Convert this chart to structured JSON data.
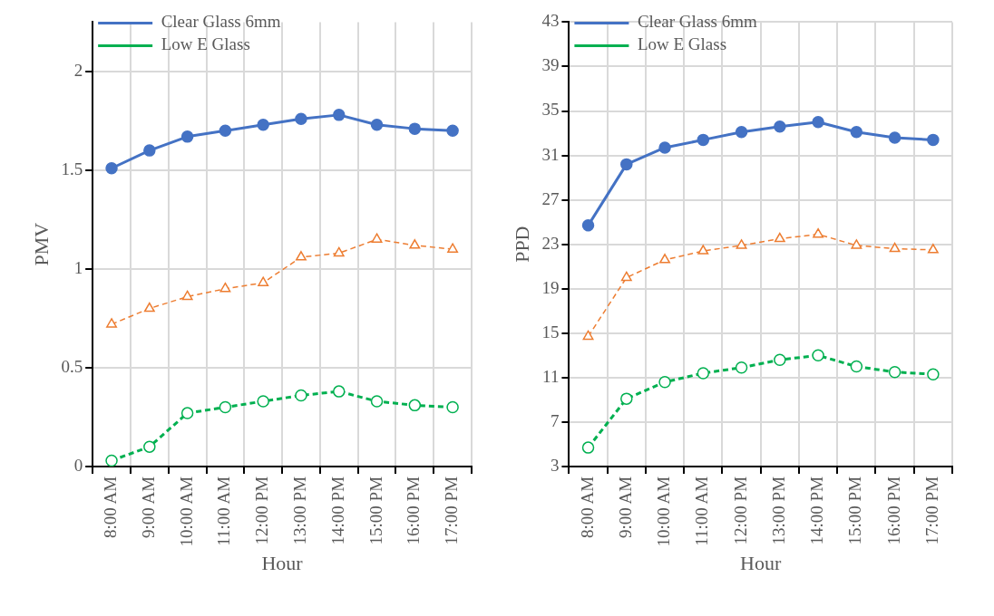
{
  "chart_data": [
    {
      "type": "line",
      "xlabel": "Hour",
      "ylabel": "PMV",
      "categories": [
        "8:00 AM",
        "9:00 AM",
        "10:00 AM",
        "11:00 AM",
        "12:00 PM",
        "13:00 PM",
        "14:00 PM",
        "15:00 PM",
        "16:00 PM",
        "17:00 PM"
      ],
      "ylim": [
        0,
        2.25
      ],
      "yticks": [
        0,
        0.5,
        1,
        1.5,
        2
      ],
      "grid": true,
      "legend": "top left",
      "series": [
        {
          "name": "Clear Glass 6mm",
          "color": "#4472c4",
          "marker": "circle",
          "line_style": "solid",
          "values": [
            1.51,
            1.6,
            1.67,
            1.7,
            1.73,
            1.76,
            1.78,
            1.73,
            1.71,
            1.7
          ]
        },
        {
          "color": "#ed7d31",
          "marker": "triangle",
          "line_style": "dashed",
          "values": [
            0.72,
            0.8,
            0.86,
            0.9,
            0.93,
            1.06,
            1.08,
            1.15,
            1.12,
            1.1
          ]
        },
        {
          "name": "Low E Glass",
          "color": "#00b050",
          "marker": "circle",
          "line_style": "dashed",
          "values": [
            0.03,
            0.1,
            0.27,
            0.3,
            0.33,
            0.36,
            0.38,
            0.33,
            0.31,
            0.3
          ]
        }
      ]
    },
    {
      "type": "line",
      "xlabel": "Hour",
      "ylabel": "PPD",
      "categories": [
        "8:00 AM",
        "9:00 AM",
        "10:00 AM",
        "11:00 AM",
        "12:00 PM",
        "13:00 PM",
        "14:00 PM",
        "15:00 PM",
        "16:00 PM",
        "17:00 PM"
      ],
      "ylim": [
        3,
        43
      ],
      "yticks": [
        3,
        7,
        11,
        15,
        19,
        23,
        27,
        31,
        35,
        39,
        43
      ],
      "grid": true,
      "legend": "top left",
      "series": [
        {
          "name": "Clear Glass 6mm",
          "color": "#4472c4",
          "marker": "circle",
          "line_style": "solid",
          "values": [
            24.7,
            30.2,
            31.7,
            32.4,
            33.1,
            33.6,
            34.0,
            33.1,
            32.6,
            32.4
          ]
        },
        {
          "color": "#ed7d31",
          "marker": "triangle",
          "line_style": "dashed",
          "values": [
            14.7,
            20.0,
            21.6,
            22.4,
            22.9,
            23.5,
            23.9,
            22.9,
            22.6,
            22.5
          ]
        },
        {
          "name": "Low E Glass",
          "color": "#00b050",
          "marker": "circle",
          "line_style": "dashed",
          "values": [
            4.7,
            9.1,
            10.6,
            11.4,
            11.9,
            12.6,
            13.0,
            12.0,
            11.5,
            11.3
          ]
        }
      ]
    }
  ]
}
